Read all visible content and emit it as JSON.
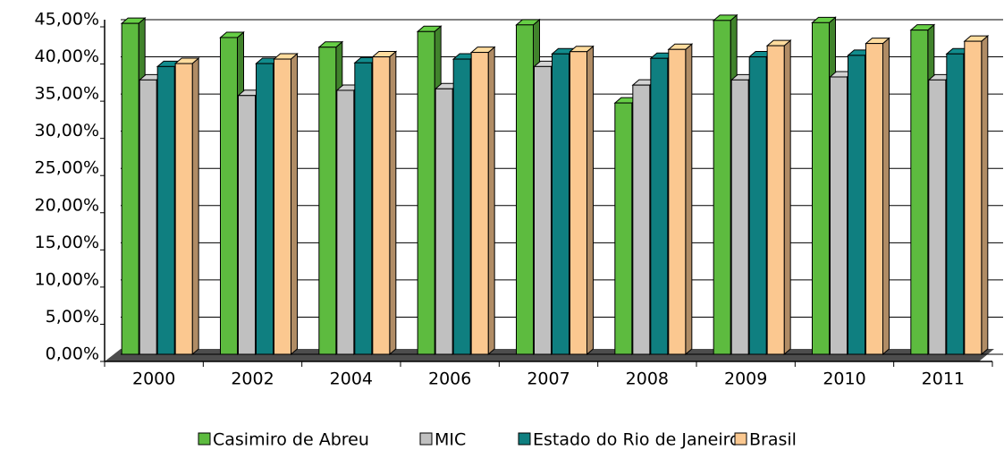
{
  "chart_data": {
    "type": "bar3d",
    "categories": [
      "2000",
      "2002",
      "2004",
      "2006",
      "2007",
      "2008",
      "2009",
      "2010",
      "2011"
    ],
    "series": [
      {
        "name": "Casimiro de Abreu",
        "color": "#5dbb3f",
        "values": [
          44.5,
          42.6,
          41.3,
          43.4,
          44.3,
          33.8,
          44.9,
          44.6,
          43.6
        ]
      },
      {
        "name": "MIC",
        "color": "#c0c0c0",
        "values": [
          36.9,
          34.8,
          35.5,
          35.7,
          38.7,
          36.2,
          36.9,
          37.3,
          36.9
        ]
      },
      {
        "name": "Estado do Rio de Janeiro",
        "color": "#0f7f80",
        "values": [
          38.7,
          39.1,
          39.2,
          39.7,
          40.4,
          39.8,
          40.0,
          40.2,
          40.4
        ]
      },
      {
        "name": "Brasil",
        "color": "#fbc890",
        "values": [
          39.1,
          39.7,
          40.0,
          40.6,
          40.7,
          41.0,
          41.5,
          41.8,
          42.1
        ]
      }
    ],
    "ylim": [
      0,
      45
    ],
    "yticks": [
      {
        "value": 0,
        "label": "0,00%"
      },
      {
        "value": 5,
        "label": "5,00%"
      },
      {
        "value": 10,
        "label": "10,00%"
      },
      {
        "value": 15,
        "label": "15,00%"
      },
      {
        "value": 20,
        "label": "20,00%"
      },
      {
        "value": 25,
        "label": "25,00%"
      },
      {
        "value": 30,
        "label": "30,00%"
      },
      {
        "value": 35,
        "label": "35,00%"
      },
      {
        "value": 40,
        "label": "40,00%"
      },
      {
        "value": 45,
        "label": "45,00%"
      }
    ],
    "grid": true
  }
}
